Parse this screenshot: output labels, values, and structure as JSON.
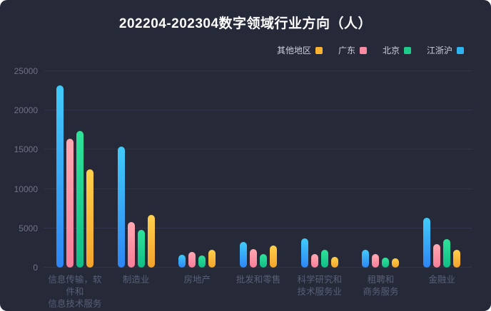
{
  "card": {
    "background": "#262938",
    "title": "202204-202304数字领域行业方向（人）"
  },
  "legend": {
    "items": [
      {
        "label": "其他地区",
        "color": "#fbb231"
      },
      {
        "label": "广东",
        "color": "#f98ca3"
      },
      {
        "label": "北京",
        "color": "#1ecb88"
      },
      {
        "label": "江浙沪",
        "color": "#2eb5f0"
      }
    ]
  },
  "chart_data": {
    "type": "bar",
    "title": "202204-202304数字领域行业方向（人）",
    "categories": [
      "信息传输，软件和\n信息技术服务业",
      "制造业",
      "房地产",
      "批发和零售",
      "科学研究和\n技术服务业",
      "租聘和\n商务服务",
      "金融业"
    ],
    "series": [
      {
        "name": "江浙沪",
        "color_top": "#41cbf8",
        "color_bottom": "#2e86f5",
        "values": [
          23200,
          15400,
          1600,
          3300,
          3700,
          2300,
          6300
        ]
      },
      {
        "name": "广东",
        "color_top": "#ffa9b2",
        "color_bottom": "#f87e99",
        "values": [
          16400,
          5800,
          2000,
          2400,
          1700,
          1700,
          3000
        ]
      },
      {
        "name": "北京",
        "color_top": "#2fe39a",
        "color_bottom": "#11bd86",
        "values": [
          17400,
          4800,
          1500,
          1700,
          2300,
          1300,
          3600
        ]
      },
      {
        "name": "其他地区",
        "color_top": "#ffd04b",
        "color_bottom": "#f3a32c",
        "values": [
          12500,
          6700,
          2300,
          2800,
          1400,
          1200,
          2300
        ]
      }
    ],
    "ylim": [
      0,
      25000
    ],
    "yticks": [
      0,
      5000,
      10000,
      15000,
      20000,
      25000
    ],
    "grid": true,
    "legend_position": "top-right"
  }
}
